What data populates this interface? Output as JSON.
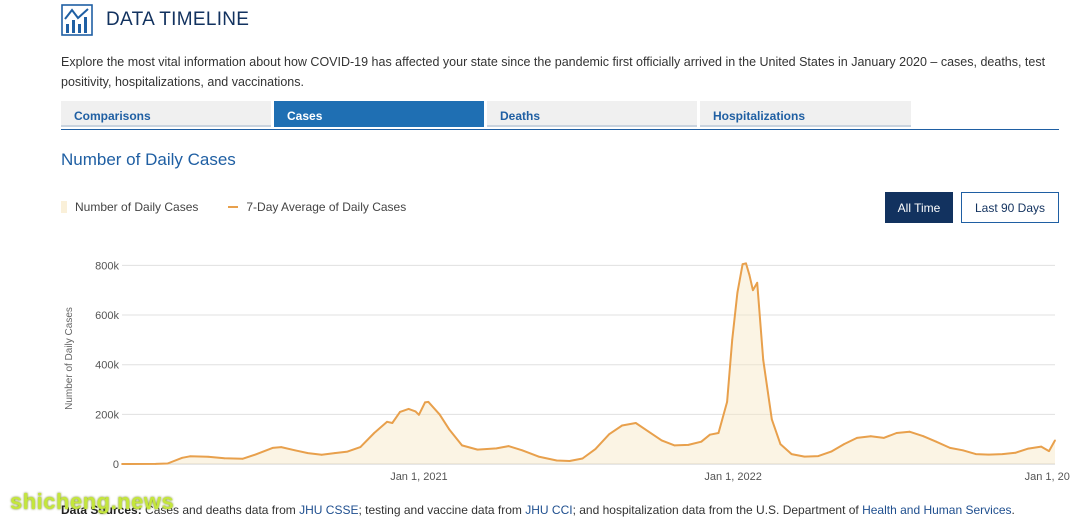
{
  "header": {
    "title": "DATA TIMELINE",
    "intro": "Explore the most vital information about how COVID-19 has affected your state since the pandemic first officially arrived in the United States in January 2020 – cases, deaths, test positivity, hospitalizations, and vaccinations."
  },
  "tabs": [
    {
      "label": "Comparisons"
    },
    {
      "label": "Cases"
    },
    {
      "label": "Deaths"
    },
    {
      "label": "Hospitalizations"
    }
  ],
  "section_title": "Number of Daily Cases",
  "legend": {
    "bars_label": "Number of Daily Cases",
    "line_label": "7-Day Average of Daily Cases"
  },
  "buttons": {
    "all_time": "All Time",
    "last_90": "Last 90 Days"
  },
  "colors": {
    "line": "#e8a04c",
    "bars": "#f7e6c4",
    "active_tab": "#1f6fb3",
    "dark_button": "#12325f"
  },
  "chart_data": {
    "type": "line",
    "ylabel": "Number of Daily Cases",
    "ylim": [
      0,
      850000
    ],
    "yticks": [
      0,
      200000,
      400000,
      600000,
      800000
    ],
    "ytick_labels": [
      "0",
      "200k",
      "400k",
      "600k",
      "800k"
    ],
    "xlim": [
      "2020-01-22",
      "2023-01-10"
    ],
    "xticks": [
      "2021-01-01",
      "2022-01-01",
      "2023-01-01"
    ],
    "xtick_labels": [
      "Jan 1, 2021",
      "Jan 1, 2022",
      "Jan 1, 20"
    ],
    "grid": true,
    "series": [
      {
        "name": "7-Day Average of Daily Cases",
        "points": [
          [
            "2020-01-22",
            0
          ],
          [
            "2020-03-01",
            300
          ],
          [
            "2020-03-15",
            2000
          ],
          [
            "2020-04-01",
            25000
          ],
          [
            "2020-04-10",
            31000
          ],
          [
            "2020-05-01",
            29000
          ],
          [
            "2020-05-20",
            23000
          ],
          [
            "2020-06-10",
            21000
          ],
          [
            "2020-06-25",
            38000
          ],
          [
            "2020-07-15",
            65000
          ],
          [
            "2020-07-25",
            68000
          ],
          [
            "2020-08-10",
            55000
          ],
          [
            "2020-08-25",
            44000
          ],
          [
            "2020-09-10",
            37000
          ],
          [
            "2020-09-25",
            44000
          ],
          [
            "2020-10-10",
            50000
          ],
          [
            "2020-10-25",
            68000
          ],
          [
            "2020-11-10",
            125000
          ],
          [
            "2020-11-25",
            170000
          ],
          [
            "2020-12-01",
            165000
          ],
          [
            "2020-12-10",
            210000
          ],
          [
            "2020-12-20",
            222000
          ],
          [
            "2020-12-28",
            212000
          ],
          [
            "2021-01-01",
            198000
          ],
          [
            "2021-01-08",
            248000
          ],
          [
            "2021-01-12",
            250000
          ],
          [
            "2021-01-25",
            200000
          ],
          [
            "2021-02-05",
            140000
          ],
          [
            "2021-02-20",
            75000
          ],
          [
            "2021-03-10",
            58000
          ],
          [
            "2021-04-01",
            63000
          ],
          [
            "2021-04-15",
            72000
          ],
          [
            "2021-05-01",
            55000
          ],
          [
            "2021-05-20",
            30000
          ],
          [
            "2021-06-10",
            14000
          ],
          [
            "2021-06-25",
            12000
          ],
          [
            "2021-07-10",
            22000
          ],
          [
            "2021-07-25",
            60000
          ],
          [
            "2021-08-10",
            120000
          ],
          [
            "2021-08-25",
            155000
          ],
          [
            "2021-09-10",
            165000
          ],
          [
            "2021-09-25",
            130000
          ],
          [
            "2021-10-10",
            95000
          ],
          [
            "2021-10-25",
            75000
          ],
          [
            "2021-11-10",
            77000
          ],
          [
            "2021-11-25",
            90000
          ],
          [
            "2021-12-05",
            118000
          ],
          [
            "2021-12-15",
            125000
          ],
          [
            "2021-12-25",
            250000
          ],
          [
            "2021-12-31",
            500000
          ],
          [
            "2022-01-06",
            690000
          ],
          [
            "2022-01-12",
            805000
          ],
          [
            "2022-01-16",
            808000
          ],
          [
            "2022-01-20",
            760000
          ],
          [
            "2022-01-24",
            700000
          ],
          [
            "2022-01-29",
            730000
          ],
          [
            "2022-02-05",
            420000
          ],
          [
            "2022-02-15",
            180000
          ],
          [
            "2022-02-25",
            80000
          ],
          [
            "2022-03-10",
            40000
          ],
          [
            "2022-03-25",
            30000
          ],
          [
            "2022-04-10",
            32000
          ],
          [
            "2022-04-25",
            50000
          ],
          [
            "2022-05-10",
            80000
          ],
          [
            "2022-05-25",
            105000
          ],
          [
            "2022-06-10",
            112000
          ],
          [
            "2022-06-25",
            105000
          ],
          [
            "2022-07-10",
            125000
          ],
          [
            "2022-07-25",
            130000
          ],
          [
            "2022-08-10",
            112000
          ],
          [
            "2022-08-25",
            90000
          ],
          [
            "2022-09-10",
            65000
          ],
          [
            "2022-09-25",
            55000
          ],
          [
            "2022-10-10",
            40000
          ],
          [
            "2022-10-25",
            38000
          ],
          [
            "2022-11-10",
            40000
          ],
          [
            "2022-11-25",
            45000
          ],
          [
            "2022-12-10",
            62000
          ],
          [
            "2022-12-25",
            70000
          ],
          [
            "2023-01-03",
            52000
          ],
          [
            "2023-01-10",
            95000
          ]
        ]
      }
    ]
  },
  "sources": {
    "label": "Data Sources:",
    "t1": " Cases and deaths data from ",
    "l1": "JHU CSSE",
    "t2": "; testing and vaccine data from ",
    "l2": "JHU CCI",
    "t3": "; and hospitalization data from the U.S. Department of ",
    "l3": "Health and Human Services",
    "t4": "."
  },
  "watermark": "shicheng.news"
}
